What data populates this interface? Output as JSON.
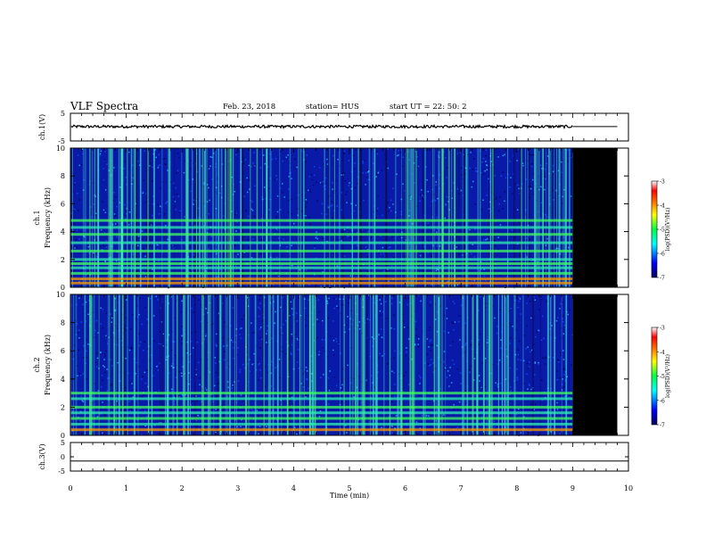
{
  "header": {
    "title": "VLF Spectra",
    "date": "Feb. 23, 2018",
    "station": "station= HUS",
    "start": "start  UT =   22: 50: 2"
  },
  "colors": {
    "background": "#ffffff",
    "frame": "#000000",
    "trace": "#000000",
    "no_data": "#000000",
    "spectrogram_low": "#0a1aa8",
    "spectrogram_mid": "#28e0c0",
    "spectrogram_high": "#ff0000"
  },
  "chart_data": [
    {
      "type": "line",
      "panel": "ch1-waveform",
      "xlabel": "",
      "ylabel": "ch.1(V)",
      "xlim": [
        0,
        10
      ],
      "ylim": [
        -5,
        5
      ],
      "y_ticks": [
        "5",
        "-5"
      ],
      "data_extent_min": [
        0,
        9
      ],
      "approx_level_V": 0.2,
      "approx_amplitude_V": 0.5,
      "after_data_level_V": 0.2
    },
    {
      "type": "heatmap",
      "panel": "ch1-spectrogram",
      "ylabel_line1": "ch.1",
      "ylabel_line2": "Frequency (kHz)",
      "xlim": [
        0,
        10
      ],
      "ylim": [
        0,
        10
      ],
      "y_ticks": [
        "0",
        "2",
        "4",
        "6",
        "8",
        "10"
      ],
      "data_extent_min": [
        0,
        9
      ],
      "no_data_fill": "black",
      "bright_bands_kHz": [
        0.3,
        0.6,
        1.0,
        1.4,
        1.7,
        2.0,
        2.6,
        3.2,
        3.8,
        4.3,
        4.8
      ],
      "colorbar": {
        "label": "log(PSD)(V²/Hz)",
        "range": [
          -7,
          -3
        ],
        "ticks": [
          "-3",
          "-4",
          "-5",
          "-6",
          "-7"
        ]
      }
    },
    {
      "type": "heatmap",
      "panel": "ch2-spectrogram",
      "ylabel_line1": "ch.2",
      "ylabel_line2": "Frequency (kHz)",
      "xlim": [
        0,
        10
      ],
      "ylim": [
        0,
        10
      ],
      "y_ticks": [
        "0",
        "2",
        "4",
        "6",
        "8",
        "10"
      ],
      "data_extent_min": [
        0,
        9
      ],
      "no_data_fill": "black",
      "bright_bands_kHz": [
        0.4,
        0.8,
        1.2,
        1.6,
        2.0,
        2.6,
        3.0
      ],
      "colorbar": {
        "label": "log(PSD)(V²/Hz)",
        "range": [
          -7,
          -3
        ],
        "ticks": [
          "-3",
          "-4",
          "-5",
          "-6",
          "-7"
        ]
      }
    },
    {
      "type": "line",
      "panel": "ch3-waveform",
      "xlabel": "Time (min)",
      "ylabel": "ch.3(V)",
      "xlim": [
        0,
        10
      ],
      "ylim": [
        -5,
        5
      ],
      "y_ticks": [
        "5",
        "0",
        "-5"
      ],
      "x_ticks": [
        "0",
        "1",
        "2",
        "3",
        "4",
        "5",
        "6",
        "7",
        "8",
        "9",
        "10"
      ],
      "flat_level_V": -1.5
    }
  ]
}
